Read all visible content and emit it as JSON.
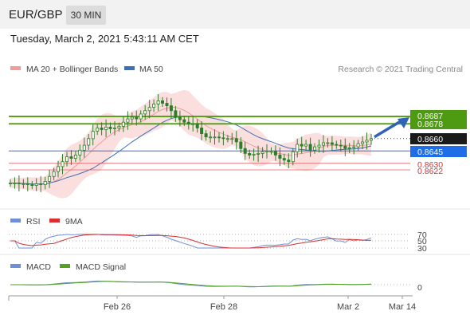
{
  "header": {
    "pair": "EUR/GBP",
    "timeframe": "30 MIN"
  },
  "datetime": "Tuesday, March 2, 2021 5:43:11 AM CET",
  "legend": {
    "ma20": "MA 20 + Bollinger Bands",
    "ma50": "MA 50",
    "credit": "Research © 2021 Trading Central",
    "rsi": "RSI",
    "rsi_ma": "9MA",
    "macd": "MACD",
    "macd_signal": "MACD Signal"
  },
  "colors": {
    "candle": "#2f7d2a",
    "band": "#f7b8b8",
    "ma20": "#f39a9a",
    "ma50": "#3b6fb6",
    "resistance": "#5aa21e",
    "pivot": "#2f6fe0",
    "support": "#e06060",
    "rsi": "#6f8fd8",
    "rsi_ma": "#d83030",
    "macd": "#6f8fd8",
    "macd_signal": "#55a21e"
  },
  "levels": [
    {
      "label": "0.8687",
      "value": 0.8687,
      "kind": "resistance"
    },
    {
      "label": "0.8678",
      "value": 0.8678,
      "kind": "resistance"
    },
    {
      "label": "0.8660",
      "value": 0.866,
      "kind": "last"
    },
    {
      "label": "0.8645",
      "value": 0.8645,
      "kind": "pivot"
    },
    {
      "label": "0.8630",
      "value": 0.863,
      "kind": "support"
    },
    {
      "label": "0.8622",
      "value": 0.8622,
      "kind": "support"
    }
  ],
  "rsi_levels": [
    "70",
    "50",
    "30"
  ],
  "macd_zero": "0",
  "x_labels": [
    "Feb 26",
    "Feb 28",
    "Mar 2",
    "Mar 14"
  ],
  "chart_data": {
    "type": "line",
    "ylim": [
      0.8598,
      0.8732
    ],
    "close": [
      0.8606,
      0.8606,
      0.8605,
      0.8605,
      0.8604,
      0.8603,
      0.8605,
      0.8604,
      0.8608,
      0.8614,
      0.862,
      0.8626,
      0.8632,
      0.8638,
      0.8636,
      0.864,
      0.8646,
      0.8652,
      0.866,
      0.8669,
      0.8673,
      0.8671,
      0.8674,
      0.8672,
      0.8673,
      0.8675,
      0.868,
      0.8684,
      0.8686,
      0.8684,
      0.869,
      0.8694,
      0.8698,
      0.8702,
      0.8706,
      0.8703,
      0.87,
      0.8694,
      0.8686,
      0.8683,
      0.868,
      0.8678,
      0.8678,
      0.8673,
      0.8666,
      0.8662,
      0.8662,
      0.8662,
      0.8661,
      0.866,
      0.866,
      0.866,
      0.8656,
      0.8648,
      0.8642,
      0.864,
      0.8641,
      0.8642,
      0.8644,
      0.8645,
      0.8645,
      0.864,
      0.8636,
      0.8634,
      0.8632,
      0.8644,
      0.8653,
      0.8651,
      0.8653,
      0.8646,
      0.865,
      0.8652,
      0.8655,
      0.8655,
      0.8653,
      0.8652,
      0.8651,
      0.8648,
      0.8649,
      0.865,
      0.8654,
      0.8656,
      0.8658,
      0.866
    ],
    "macd_direction": "up",
    "levels": [
      0.8687,
      0.8678,
      0.866,
      0.8645,
      0.863,
      0.8622
    ]
  }
}
